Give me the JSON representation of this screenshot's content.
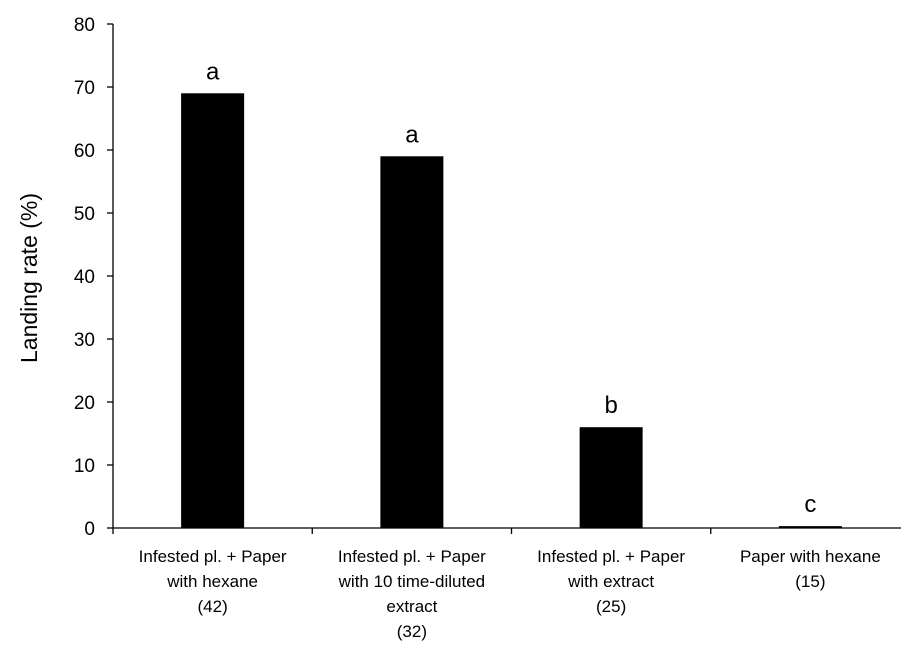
{
  "chart_data": {
    "type": "bar",
    "title": "",
    "xlabel": "",
    "ylabel": "Landing rate (%)",
    "ylim": [
      0,
      80
    ],
    "yticks": [
      "0",
      "10",
      "20",
      "30",
      "40",
      "50",
      "60",
      "70",
      "80"
    ],
    "categories": [
      [
        "Infested pl. + Paper",
        "with hexane",
        "(42)"
      ],
      [
        "Infested pl. + Paper",
        "with 10 time-diluted",
        "extract",
        "(32)"
      ],
      [
        "Infested pl. + Paper",
        "with extract",
        "(25)"
      ],
      [
        "Paper with hexane",
        "(15)"
      ]
    ],
    "values": [
      69,
      59,
      16,
      0.3
    ],
    "bar_labels": [
      "a",
      "a",
      "b",
      "c"
    ],
    "bar_color": "#000000",
    "grid": false,
    "legend": "none"
  }
}
